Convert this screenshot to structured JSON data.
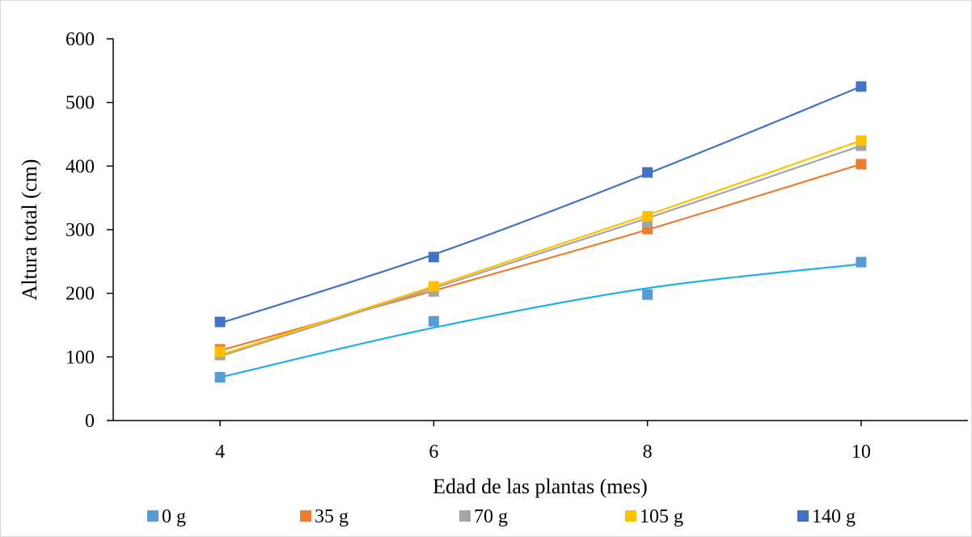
{
  "chart_data": {
    "type": "scatter",
    "xlabel": "Edad de las plantas (mes)",
    "ylabel": "Altura total (cm)",
    "xlim": [
      3,
      11
    ],
    "ylim": [
      0,
      600
    ],
    "x_ticks": [
      4,
      6,
      8,
      10
    ],
    "y_ticks": [
      0,
      100,
      200,
      300,
      400,
      500,
      600
    ],
    "x": [
      4,
      6,
      8,
      10
    ],
    "grid": false,
    "legend_position": "bottom",
    "trendline": "polynomial",
    "series": [
      {
        "name": "0 g",
        "color": "#5B9BD5",
        "line_color": "#1EB1E6",
        "values": [
          68,
          156,
          198,
          249
        ],
        "fit": [
          68,
          146,
          208,
          246
        ]
      },
      {
        "name": "35 g",
        "color": "#ED7D31",
        "line_color": "#ED7D31",
        "values": [
          112,
          207,
          301,
          403
        ],
        "fit": [
          110,
          204,
          300,
          403
        ]
      },
      {
        "name": "70 g",
        "color": "#A5A5A5",
        "line_color": "#A5A5A5",
        "values": [
          103,
          203,
          312,
          432
        ],
        "fit": [
          101,
          208,
          318,
          432
        ]
      },
      {
        "name": "105 g",
        "color": "#FFC000",
        "line_color": "#FFC000",
        "values": [
          108,
          211,
          321,
          440
        ],
        "fit": [
          103,
          211,
          323,
          440
        ]
      },
      {
        "name": "140 g",
        "color": "#4472C4",
        "line_color": "#4472C4",
        "values": [
          155,
          257,
          390,
          525
        ],
        "fit": [
          153,
          261,
          388,
          525
        ]
      }
    ]
  }
}
